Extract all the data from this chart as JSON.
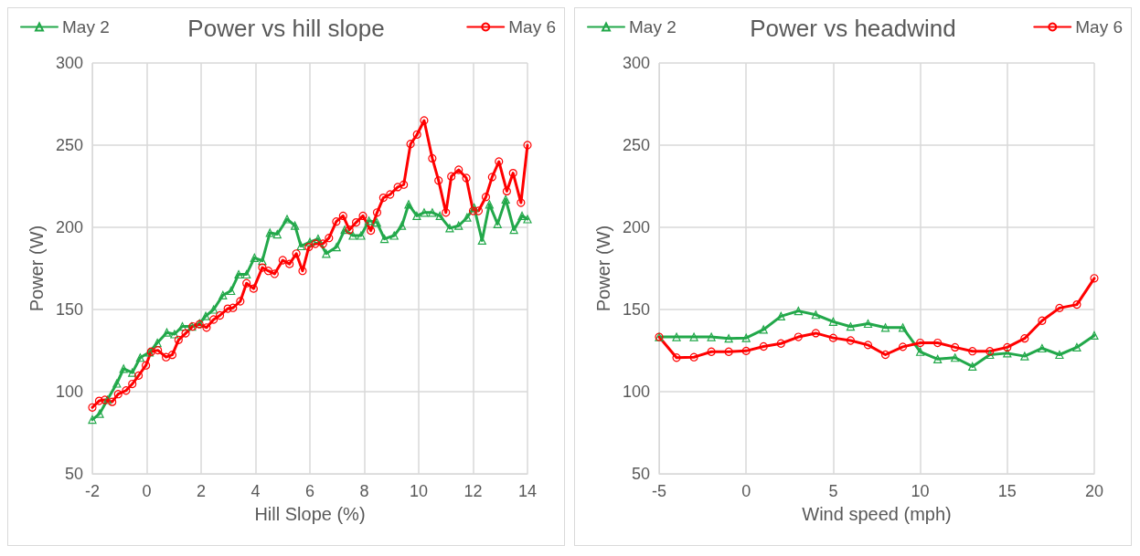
{
  "chart_data": [
    {
      "type": "line",
      "title": "Power vs hill slope",
      "xlabel": "Hill Slope (%)",
      "ylabel": "Power (W)",
      "xlim": [
        -2,
        14
      ],
      "xticks": [
        -2,
        0,
        2,
        4,
        6,
        8,
        10,
        12,
        14
      ],
      "ylim": [
        50,
        300
      ],
      "yticks": [
        50,
        100,
        150,
        200,
        250,
        300
      ],
      "grid": true,
      "legend": "top",
      "line_style": "solid",
      "series": [
        {
          "name": "May 2",
          "color": "#22a84a",
          "marker": "triangle",
          "x": [
            -2,
            -1.73,
            -1.45,
            -1.1,
            -0.85,
            -0.53,
            -0.24,
            0.1,
            0.39,
            0.74,
            1.02,
            1.31,
            1.66,
            1.94,
            2.17,
            2.46,
            2.8,
            3.1,
            3.38,
            3.67,
            3.96,
            4.25,
            4.53,
            4.8,
            5.16,
            5.45,
            5.67,
            6.0,
            6.3,
            6.6,
            6.98,
            7.28,
            7.58,
            7.88,
            8.17,
            8.46,
            8.74,
            9.1,
            9.38,
            9.63,
            9.93,
            10.2,
            10.5,
            10.78,
            11.14,
            11.47,
            11.78,
            12.04,
            12.33,
            12.6,
            12.9,
            13.2,
            13.5,
            13.8,
            14
          ],
          "values": [
            83,
            86.6,
            95,
            105,
            114,
            111.6,
            120.7,
            124,
            129.7,
            136,
            135,
            139.7,
            139.7,
            141.5,
            146,
            150,
            158.7,
            161.4,
            171.4,
            171.4,
            181.5,
            179.6,
            196.7,
            195.8,
            205,
            201,
            188.6,
            191,
            193,
            184,
            188,
            198.5,
            195,
            195,
            204,
            203,
            193,
            195,
            201,
            214,
            207,
            209,
            209,
            207,
            199.5,
            201,
            206,
            212,
            192,
            214,
            202,
            217,
            198.5,
            207,
            205
          ]
        },
        {
          "name": "May 6",
          "color": "#ff0000",
          "marker": "circle",
          "x": [
            -2,
            -1.75,
            -1.54,
            -1.27,
            -1.05,
            -0.76,
            -0.53,
            -0.3,
            -0.03,
            0.16,
            0.41,
            0.71,
            0.94,
            1.17,
            1.43,
            1.69,
            1.94,
            2.2,
            2.46,
            2.69,
            2.98,
            3.17,
            3.44,
            3.67,
            3.93,
            4.25,
            4.47,
            4.7,
            5.0,
            5.25,
            5.5,
            5.73,
            5.96,
            6.2,
            6.48,
            6.7,
            6.97,
            7.22,
            7.45,
            7.7,
            7.95,
            8.24,
            8.47,
            8.7,
            8.95,
            9.23,
            9.45,
            9.7,
            9.94,
            10.2,
            10.5,
            10.73,
            11.0,
            11.2,
            11.47,
            11.75,
            12.0,
            12.2,
            12.47,
            12.7,
            12.95,
            13.24,
            13.47,
            13.76,
            14
          ],
          "values": [
            90.4,
            94.4,
            95,
            93.8,
            98.5,
            100.7,
            104.7,
            109.8,
            116,
            124.3,
            125.2,
            121,
            122.4,
            131.5,
            135.5,
            139.7,
            141,
            139,
            143.9,
            146.4,
            150.5,
            151,
            155,
            166,
            162.7,
            175.5,
            173.5,
            171.7,
            180,
            177.7,
            184,
            173.5,
            188,
            190,
            190,
            193.5,
            203.5,
            207,
            198.5,
            203,
            207,
            198,
            209,
            218,
            220,
            224.5,
            226,
            250.7,
            256.5,
            265,
            242,
            228.5,
            209,
            231,
            235,
            230,
            210,
            210,
            218.5,
            230.6,
            240,
            222,
            233,
            215,
            250
          ]
        }
      ]
    },
    {
      "type": "line",
      "title": "Power vs headwind",
      "xlabel": "Wind speed (mph)",
      "ylabel": "Power (W)",
      "xlim": [
        -5,
        20
      ],
      "xticks": [
        -5,
        0,
        5,
        10,
        15,
        20
      ],
      "ylim": [
        50,
        300
      ],
      "yticks": [
        50,
        100,
        150,
        200,
        250,
        300
      ],
      "grid": true,
      "legend": "top",
      "line_style": "solid",
      "series": [
        {
          "name": "May 2",
          "color": "#22a84a",
          "marker": "triangle",
          "x": [
            -5,
            -4,
            -3,
            -2,
            -1,
            0,
            1,
            2,
            3,
            4,
            5,
            6,
            7,
            8,
            9,
            10,
            11,
            12,
            13,
            14,
            15,
            16,
            17,
            18,
            19,
            20
          ],
          "values": [
            133.3,
            133.3,
            133.3,
            133.3,
            132.4,
            132.7,
            137.8,
            145.9,
            149.1,
            146.8,
            142.6,
            139.6,
            141.4,
            139,
            139,
            124.3,
            119.8,
            120.7,
            115.3,
            122.5,
            123.4,
            121.6,
            126.4,
            122.5,
            127,
            134.2
          ]
        },
        {
          "name": "May 6",
          "color": "#ff0000",
          "marker": "circle",
          "x": [
            -5,
            -4,
            -3,
            -2,
            -1,
            0,
            1,
            2,
            3,
            4,
            5,
            6,
            7,
            8,
            9,
            10,
            11,
            12,
            13,
            14,
            15,
            16,
            17,
            18,
            19,
            20
          ],
          "values": [
            133.3,
            120.7,
            121,
            124.3,
            124.3,
            124.8,
            127.5,
            129.3,
            133.3,
            135.6,
            132.7,
            131.1,
            128.4,
            122.5,
            127.3,
            129.7,
            129.7,
            127,
            124.6,
            124.6,
            127,
            132.4,
            143.2,
            150.9,
            153,
            169
          ]
        }
      ]
    }
  ]
}
